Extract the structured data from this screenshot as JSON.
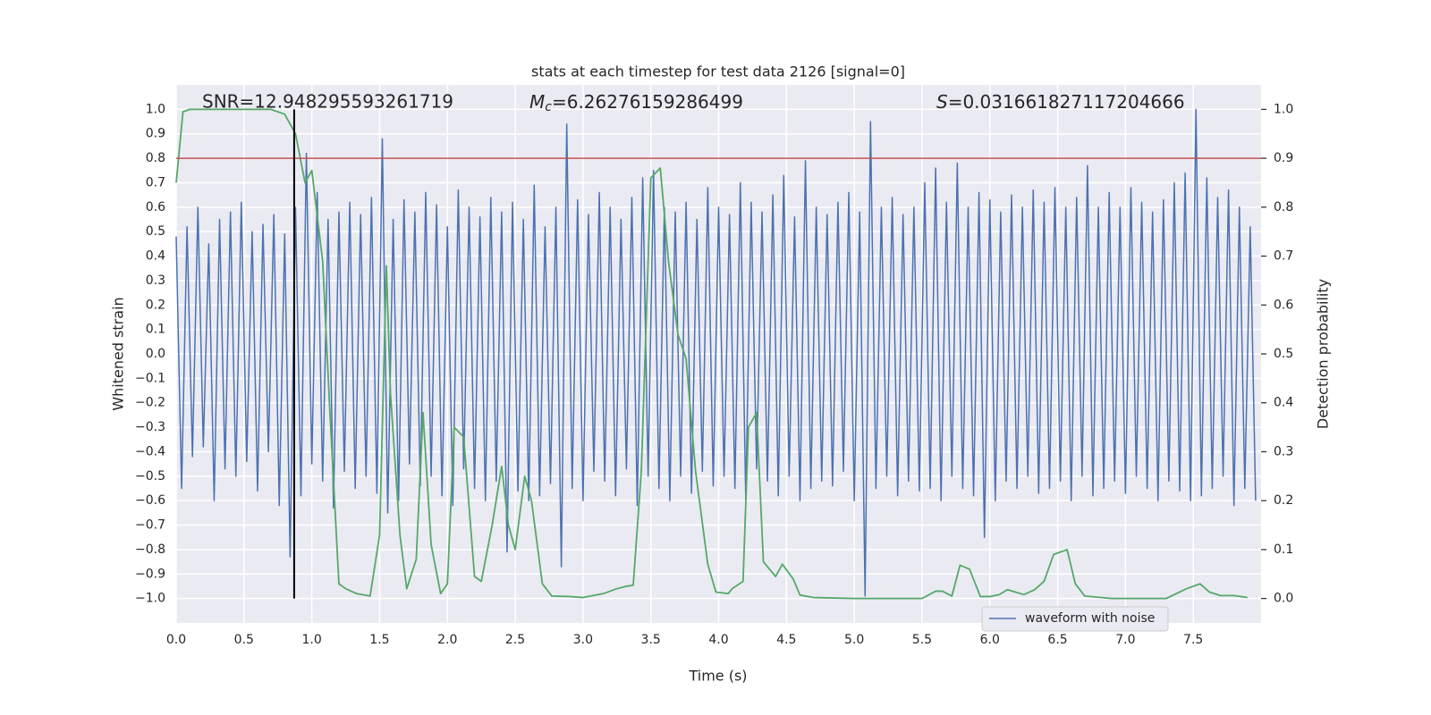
{
  "chart_data": {
    "type": "line",
    "title": "stats at each timestep for test data 2126 [signal=0]",
    "xlabel": "Time (s)",
    "ylabel": "Whitened strain",
    "y2label": "Detection probability",
    "annotations": [
      {
        "text": "SNR=12.948295593261719"
      },
      {
        "symbol": "M",
        "subscript": "c",
        "text": "=6.26276159286499"
      },
      {
        "symbol": "S",
        "text": "=0.031661827117204666"
      }
    ],
    "xlim": [
      0,
      8
    ],
    "ylim": [
      -1.1,
      1.1
    ],
    "y2lim": [
      -0.05,
      1.05
    ],
    "grid": true,
    "legend": "lower right",
    "xticks": [
      {
        "value": 0,
        "label": "0.0"
      },
      {
        "value": 0.5,
        "label": "0.5"
      },
      {
        "value": 1,
        "label": "1.0"
      },
      {
        "value": 1.5,
        "label": "1.5"
      },
      {
        "value": 2,
        "label": "2.0"
      },
      {
        "value": 2.5,
        "label": "2.5"
      },
      {
        "value": 3,
        "label": "3.0"
      },
      {
        "value": 3.5,
        "label": "3.5"
      },
      {
        "value": 4,
        "label": "4.0"
      },
      {
        "value": 4.5,
        "label": "4.5"
      },
      {
        "value": 5,
        "label": "5.0"
      },
      {
        "value": 5.5,
        "label": "5.5"
      },
      {
        "value": 6,
        "label": "6.0"
      },
      {
        "value": 6.5,
        "label": "6.5"
      },
      {
        "value": 7,
        "label": "7.0"
      },
      {
        "value": 7.5,
        "label": "7.5"
      }
    ],
    "yticks": [
      {
        "value": -1,
        "label": "−1.0"
      },
      {
        "value": -0.9,
        "label": "−0.9"
      },
      {
        "value": -0.8,
        "label": "−0.8"
      },
      {
        "value": -0.7,
        "label": "−0.7"
      },
      {
        "value": -0.6,
        "label": "−0.6"
      },
      {
        "value": -0.5,
        "label": "−0.5"
      },
      {
        "value": -0.4,
        "label": "−0.4"
      },
      {
        "value": -0.3,
        "label": "−0.3"
      },
      {
        "value": -0.2,
        "label": "−0.2"
      },
      {
        "value": -0.1,
        "label": "−0.1"
      },
      {
        "value": 0,
        "label": "0.0"
      },
      {
        "value": 0.1,
        "label": "0.1"
      },
      {
        "value": 0.2,
        "label": "0.2"
      },
      {
        "value": 0.3,
        "label": "0.3"
      },
      {
        "value": 0.4,
        "label": "0.4"
      },
      {
        "value": 0.5,
        "label": "0.5"
      },
      {
        "value": 0.6,
        "label": "0.6"
      },
      {
        "value": 0.7,
        "label": "0.7"
      },
      {
        "value": 0.8,
        "label": "0.8"
      },
      {
        "value": 0.9,
        "label": "0.9"
      },
      {
        "value": 1,
        "label": "1.0"
      }
    ],
    "y2ticks": [
      {
        "value": 0,
        "label": "0.0"
      },
      {
        "value": 0.1,
        "label": "0.1"
      },
      {
        "value": 0.2,
        "label": "0.2"
      },
      {
        "value": 0.3,
        "label": "0.3"
      },
      {
        "value": 0.4,
        "label": "0.4"
      },
      {
        "value": 0.5,
        "label": "0.5"
      },
      {
        "value": 0.6,
        "label": "0.6"
      },
      {
        "value": 0.7,
        "label": "0.7"
      },
      {
        "value": 0.8,
        "label": "0.8"
      },
      {
        "value": 0.9,
        "label": "0.9"
      },
      {
        "value": 1,
        "label": "1.0"
      }
    ],
    "hlines": [
      {
        "y": 0.8,
        "color": "#c44e52"
      }
    ],
    "vlines": [
      {
        "x": 0.87,
        "ymin": -1,
        "ymax": 1,
        "color": "#000000"
      }
    ],
    "series": [
      {
        "name": "waveform with noise",
        "color": "#4c72b0",
        "x": [
          0,
          0.04,
          0.08,
          0.12,
          0.16,
          0.2,
          0.24,
          0.28,
          0.32,
          0.36,
          0.4,
          0.44,
          0.48,
          0.52,
          0.56,
          0.6,
          0.64,
          0.68,
          0.72,
          0.76,
          0.8,
          0.84,
          0.88,
          0.92,
          0.96,
          1,
          1.04,
          1.08,
          1.12,
          1.16,
          1.2,
          1.24,
          1.28,
          1.32,
          1.36,
          1.4,
          1.44,
          1.48,
          1.52,
          1.56,
          1.6,
          1.64,
          1.68,
          1.72,
          1.76,
          1.8,
          1.84,
          1.88,
          1.92,
          1.96,
          2,
          2.04,
          2.08,
          2.12,
          2.16,
          2.2,
          2.24,
          2.28,
          2.32,
          2.36,
          2.4,
          2.44,
          2.48,
          2.52,
          2.56,
          2.6,
          2.64,
          2.68,
          2.72,
          2.76,
          2.8,
          2.84,
          2.88,
          2.92,
          2.96,
          3,
          3.04,
          3.08,
          3.12,
          3.16,
          3.2,
          3.24,
          3.28,
          3.32,
          3.36,
          3.4,
          3.44,
          3.48,
          3.52,
          3.56,
          3.6,
          3.64,
          3.68,
          3.72,
          3.76,
          3.8,
          3.84,
          3.88,
          3.92,
          3.96,
          4,
          4.04,
          4.08,
          4.12,
          4.16,
          4.2,
          4.24,
          4.28,
          4.32,
          4.36,
          4.4,
          4.44,
          4.48,
          4.52,
          4.56,
          4.6,
          4.64,
          4.68,
          4.72,
          4.76,
          4.8,
          4.84,
          4.88,
          4.92,
          4.96,
          5,
          5.04,
          5.08,
          5.12,
          5.16,
          5.2,
          5.24,
          5.28,
          5.32,
          5.36,
          5.4,
          5.44,
          5.48,
          5.52,
          5.56,
          5.6,
          5.64,
          5.68,
          5.72,
          5.76,
          5.8,
          5.84,
          5.88,
          5.92,
          5.96,
          6,
          6.04,
          6.08,
          6.12,
          6.16,
          6.2,
          6.24,
          6.28,
          6.32,
          6.36,
          6.4,
          6.44,
          6.48,
          6.52,
          6.56,
          6.6,
          6.64,
          6.68,
          6.72,
          6.76,
          6.8,
          6.84,
          6.88,
          6.92,
          6.96,
          7,
          7.04,
          7.08,
          7.12,
          7.16,
          7.2,
          7.24,
          7.28,
          7.32,
          7.36,
          7.4,
          7.44,
          7.48,
          7.52,
          7.56,
          7.6,
          7.64,
          7.68,
          7.72,
          7.76,
          7.8,
          7.84,
          7.88,
          7.92,
          7.96
        ],
        "values": [
          0.48,
          -0.55,
          0.52,
          -0.42,
          0.6,
          -0.38,
          0.45,
          -0.6,
          0.55,
          -0.47,
          0.58,
          -0.5,
          0.62,
          -0.44,
          0.5,
          -0.56,
          0.53,
          -0.4,
          0.57,
          -0.62,
          0.49,
          -0.83,
          0.6,
          -0.58,
          0.82,
          -0.45,
          0.66,
          -0.52,
          0.55,
          -0.63,
          0.58,
          -0.48,
          0.62,
          -0.55,
          0.57,
          -0.5,
          0.64,
          -0.57,
          0.88,
          -0.65,
          0.55,
          -0.6,
          0.63,
          -0.45,
          0.58,
          -0.54,
          0.66,
          -0.5,
          0.61,
          -0.58,
          0.52,
          -0.62,
          0.67,
          -0.47,
          0.6,
          -0.55,
          0.56,
          -0.6,
          0.64,
          -0.52,
          0.58,
          -0.81,
          0.62,
          -0.56,
          0.55,
          -0.6,
          0.69,
          -0.58,
          0.52,
          -0.53,
          0.6,
          -0.87,
          0.94,
          -0.55,
          0.63,
          -0.6,
          0.57,
          -0.48,
          0.66,
          -0.52,
          0.6,
          -0.58,
          0.55,
          -0.47,
          0.64,
          -0.62,
          0.72,
          -0.5,
          0.75,
          -0.55,
          0.6,
          -0.6,
          0.58,
          -0.5,
          0.62,
          -0.57,
          0.55,
          -0.48,
          0.68,
          -0.54,
          0.6,
          -0.5,
          0.57,
          -0.55,
          0.7,
          -0.6,
          0.62,
          -0.47,
          0.58,
          -0.52,
          0.65,
          -0.58,
          0.73,
          -0.5,
          0.56,
          -0.6,
          0.79,
          -0.55,
          0.6,
          -0.52,
          0.57,
          -0.54,
          0.62,
          -0.48,
          0.66,
          -0.6,
          0.58,
          -0.99,
          0.95,
          -0.55,
          0.6,
          -0.5,
          0.64,
          -0.58,
          0.57,
          -0.52,
          0.6,
          -0.56,
          0.7,
          -0.55,
          0.76,
          -0.6,
          0.62,
          -0.5,
          0.78,
          -0.55,
          0.6,
          -0.58,
          0.66,
          -0.75,
          0.63,
          -0.6,
          0.58,
          -0.52,
          0.65,
          -0.55,
          0.6,
          -0.5,
          0.67,
          -0.57,
          0.62,
          -0.55,
          0.68,
          -0.52,
          0.6,
          -0.6,
          0.64,
          -0.5,
          0.77,
          -0.58,
          0.6,
          -0.55,
          0.66,
          -0.52,
          0.6,
          -0.57,
          0.68,
          -0.5,
          0.62,
          -0.55,
          0.58,
          -0.6,
          0.63,
          -0.52,
          0.7,
          -0.56,
          0.74,
          -0.6,
          1.0,
          -0.58,
          0.72,
          -0.55,
          0.64,
          -0.5,
          0.67,
          -0.62,
          0.6,
          -0.55,
          0.52,
          -0.6
        ]
      },
      {
        "color": "#55a868",
        "axis": "y2",
        "x": [
          0,
          0.05,
          0.1,
          0.2,
          0.3,
          0.4,
          0.5,
          0.6,
          0.7,
          0.8,
          0.88,
          0.95,
          1,
          1.08,
          1.13,
          1.2,
          1.25,
          1.33,
          1.43,
          1.5,
          1.55,
          1.58,
          1.65,
          1.7,
          1.77,
          1.82,
          1.88,
          1.95,
          2,
          2.05,
          2.12,
          2.2,
          2.25,
          2.33,
          2.4,
          2.45,
          2.5,
          2.57,
          2.62,
          2.7,
          2.77,
          2.9,
          3,
          3.15,
          3.25,
          3.32,
          3.37,
          3.43,
          3.5,
          3.57,
          3.63,
          3.7,
          3.76,
          3.83,
          3.92,
          3.98,
          4.07,
          4.1,
          4.18,
          4.22,
          4.28,
          4.33,
          4.42,
          4.47,
          4.55,
          4.6,
          4.7,
          5,
          5.5,
          5.6,
          5.65,
          5.72,
          5.78,
          5.85,
          5.93,
          6,
          6.07,
          6.13,
          6.25,
          6.33,
          6.4,
          6.47,
          6.57,
          6.63,
          6.7,
          6.9,
          7.3,
          7.45,
          7.55,
          7.62,
          7.7,
          7.8,
          7.9
        ],
        "values": [
          0.85,
          0.995,
          1,
          1,
          1,
          1,
          1,
          1,
          1,
          0.99,
          0.95,
          0.85,
          0.875,
          0.69,
          0.4,
          0.03,
          0.02,
          0.01,
          0.005,
          0.13,
          0.68,
          0.42,
          0.13,
          0.02,
          0.08,
          0.38,
          0.11,
          0.01,
          0.03,
          0.35,
          0.33,
          0.045,
          0.035,
          0.15,
          0.27,
          0.15,
          0.1,
          0.25,
          0.2,
          0.03,
          0.005,
          0.004,
          0.002,
          0.01,
          0.02,
          0.025,
          0.027,
          0.26,
          0.86,
          0.88,
          0.69,
          0.54,
          0.49,
          0.26,
          0.07,
          0.013,
          0.01,
          0.02,
          0.035,
          0.35,
          0.38,
          0.075,
          0.045,
          0.07,
          0.04,
          0.007,
          0.002,
          0,
          0,
          0.015,
          0.015,
          0.005,
          0.068,
          0.06,
          0.004,
          0.004,
          0.008,
          0.018,
          0.008,
          0.018,
          0.035,
          0.09,
          0.1,
          0.03,
          0.005,
          0,
          0,
          0.02,
          0.03,
          0.013,
          0.006,
          0.006,
          0.002
        ]
      }
    ]
  }
}
